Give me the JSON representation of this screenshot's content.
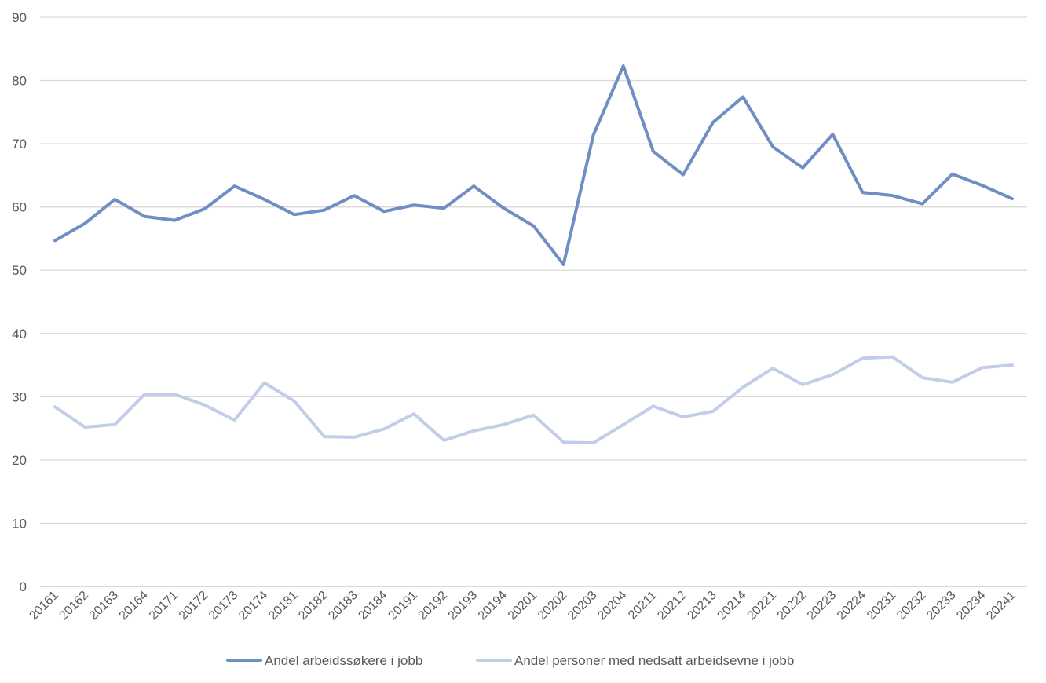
{
  "chart_data": {
    "type": "line",
    "categories": [
      "20161",
      "20162",
      "20163",
      "20164",
      "20171",
      "20172",
      "20173",
      "20174",
      "20181",
      "20182",
      "20183",
      "20184",
      "20191",
      "20192",
      "20193",
      "20194",
      "20201",
      "20202",
      "20203",
      "20204",
      "20211",
      "20212",
      "20213",
      "20214",
      "20221",
      "20222",
      "20223",
      "20224",
      "20231",
      "20232",
      "20233",
      "20234",
      "20241"
    ],
    "series": [
      {
        "name": "Andel arbeidssøkere i jobb",
        "color": "#6f8fc4",
        "values": [
          54.7,
          57.4,
          61.2,
          58.5,
          57.9,
          59.7,
          63.3,
          61.2,
          58.8,
          59.5,
          61.8,
          59.3,
          60.3,
          59.8,
          63.3,
          59.8,
          57.0,
          50.9,
          71.4,
          82.3,
          68.8,
          65.1,
          73.4,
          77.4,
          69.5,
          66.2,
          71.5,
          62.3,
          61.8,
          60.5,
          65.2,
          63.4,
          61.3
        ]
      },
      {
        "name": "Andel personer med nedsatt arbeidsevne i jobb",
        "color": "#c2cde8",
        "values": [
          28.4,
          25.2,
          25.6,
          30.4,
          30.4,
          28.7,
          26.3,
          32.2,
          29.3,
          23.7,
          23.6,
          24.9,
          27.3,
          23.1,
          24.6,
          25.6,
          27.1,
          22.8,
          22.7,
          25.6,
          28.5,
          26.8,
          27.7,
          31.5,
          34.5,
          31.9,
          33.5,
          36.1,
          36.3,
          33.0,
          32.3,
          34.6,
          35.0
        ]
      }
    ],
    "ylim": [
      0,
      90
    ],
    "yticks": [
      0,
      10,
      20,
      30,
      40,
      50,
      60,
      70,
      80,
      90
    ],
    "grid": true,
    "legend_position": "bottom"
  }
}
